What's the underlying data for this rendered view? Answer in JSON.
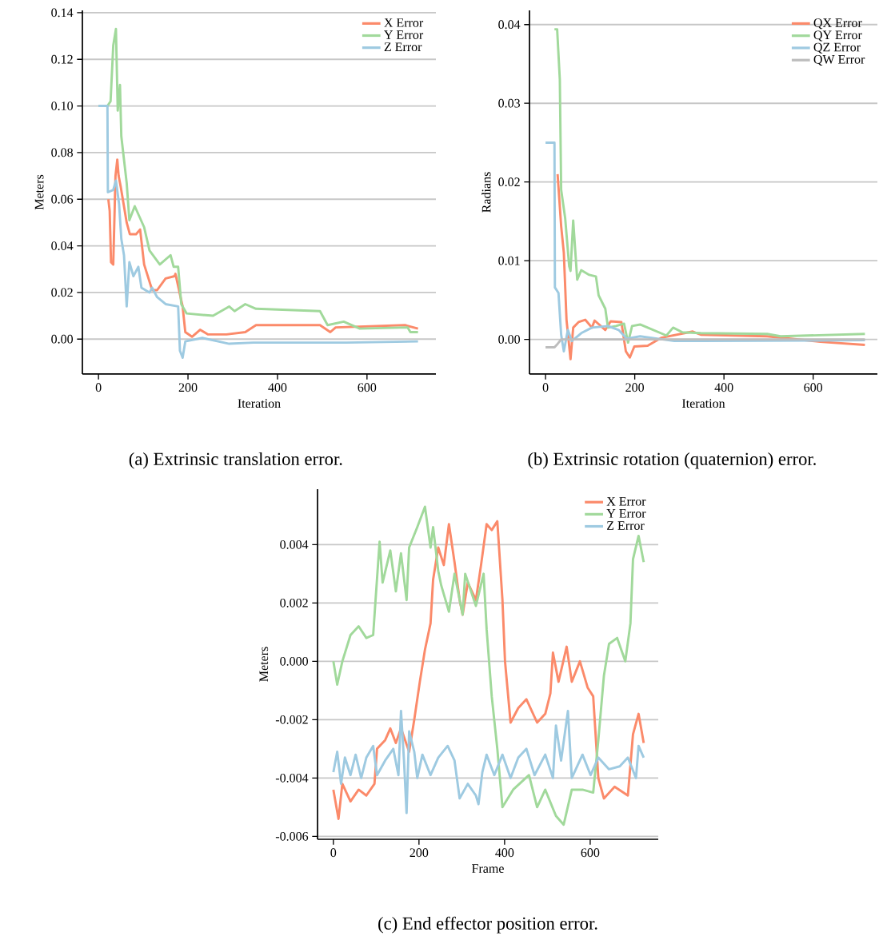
{
  "chart_data": [
    {
      "type": "line",
      "xlabel": "Iteration",
      "ylabel": "Meters",
      "annotations": [
        "(a) Extrinsic translation error."
      ],
      "xlim": [
        -36,
        754
      ],
      "ylim": [
        -0.015,
        0.141
      ],
      "xticks": [
        0,
        200,
        400,
        600
      ],
      "yticks": [
        {
          "value": 0,
          "label": "0.00"
        },
        {
          "value": 0.02,
          "label": "0.02"
        },
        {
          "value": 0.04,
          "label": "0.04"
        },
        {
          "value": 0.06,
          "label": "0.06"
        },
        {
          "value": 0.08,
          "label": "0.08"
        },
        {
          "value": 0.1,
          "label": "0.10"
        },
        {
          "value": 0.12,
          "label": "0.12"
        },
        {
          "value": 0.14,
          "label": "0.14"
        }
      ],
      "grid": "y",
      "legend": "top right",
      "series": [
        {
          "name": "X Error",
          "color": "#fb8a6a",
          "x": [
            22,
            25,
            28,
            33,
            38,
            42,
            45,
            50,
            63,
            70,
            84,
            93,
            102,
            120,
            131,
            150,
            170,
            172,
            188,
            194,
            209,
            227,
            245,
            286,
            328,
            352,
            495,
            518,
            530,
            685,
            714
          ],
          "values": [
            0.06,
            0.055,
            0.033,
            0.032,
            0.07,
            0.077,
            0.07,
            0.065,
            0.05,
            0.045,
            0.045,
            0.047,
            0.032,
            0.021,
            0.021,
            0.026,
            0.027,
            0.028,
            0.014,
            0.003,
            0.001,
            0.004,
            0.002,
            0.002,
            0.003,
            0.006,
            0.006,
            0.003,
            0.005,
            0.006,
            0.0045
          ]
        },
        {
          "name": "Y Error",
          "color": "#a1d99b",
          "x": [
            0,
            20,
            27,
            33,
            39,
            43,
            48,
            51,
            63,
            66,
            69,
            81,
            102,
            114,
            137,
            161,
            168,
            178,
            185,
            197,
            256,
            292,
            304,
            328,
            352,
            495,
            512,
            548,
            584,
            691,
            697,
            714
          ],
          "values": [
            0.1,
            0.1,
            0.102,
            0.126,
            0.133,
            0.098,
            0.109,
            0.087,
            0.067,
            0.059,
            0.051,
            0.057,
            0.048,
            0.038,
            0.032,
            0.036,
            0.031,
            0.031,
            0.015,
            0.011,
            0.01,
            0.014,
            0.012,
            0.015,
            0.013,
            0.012,
            0.006,
            0.0075,
            0.0045,
            0.005,
            0.003,
            0.003
          ]
        },
        {
          "name": "Z Error",
          "color": "#9ecae1",
          "x": [
            0,
            20,
            21,
            33,
            39,
            46,
            51,
            57,
            63,
            69,
            78,
            89,
            96,
            114,
            120,
            131,
            150,
            178,
            182,
            188,
            194,
            232,
            292,
            346,
            554,
            714
          ],
          "values": [
            0.1,
            0.1,
            0.063,
            0.064,
            0.068,
            0.058,
            0.043,
            0.036,
            0.014,
            0.033,
            0.027,
            0.031,
            0.022,
            0.02,
            0.022,
            0.018,
            0.015,
            0.014,
            -0.005,
            -0.008,
            -0.001,
            0.0005,
            -0.002,
            -0.0015,
            -0.0015,
            -0.001
          ]
        }
      ]
    },
    {
      "type": "line",
      "xlabel": "Iteration",
      "ylabel": "Radians",
      "annotations": [
        "(b) Extrinsic rotation (quaternion) error."
      ],
      "xlim": [
        -36,
        744
      ],
      "ylim": [
        -0.0044,
        0.0418
      ],
      "xticks": [
        0,
        200,
        400,
        600
      ],
      "yticks": [
        {
          "value": 0,
          "label": "0.00"
        },
        {
          "value": 0.01,
          "label": "0.01"
        },
        {
          "value": 0.02,
          "label": "0.02"
        },
        {
          "value": 0.03,
          "label": "0.03"
        },
        {
          "value": 0.04,
          "label": "0.04"
        }
      ],
      "grid": "y",
      "legend": "top right",
      "series": [
        {
          "name": "QX Error",
          "color": "#fb8a6a",
          "x": [
            27,
            35,
            41,
            47,
            56,
            62,
            74,
            89,
            104,
            110,
            134,
            146,
            170,
            180,
            189,
            199,
            229,
            259,
            330,
            348,
            497,
            616,
            716
          ],
          "values": [
            0.021,
            0.0144,
            0.011,
            0.0025,
            -0.0025,
            0.0015,
            0.0022,
            0.0025,
            0.0015,
            0.0024,
            0.0012,
            0.0023,
            0.0022,
            -0.0015,
            -0.0023,
            -0.0009,
            -0.0008,
            0.0002,
            0.001,
            0.0006,
            0.0004,
            -0.0003,
            -0.0007
          ]
        },
        {
          "name": "QY Error",
          "color": "#a1d99b",
          "x": [
            20,
            26,
            32,
            35,
            44,
            53,
            56,
            62,
            71,
            80,
            98,
            113,
            119,
            134,
            140,
            158,
            176,
            185,
            194,
            212,
            229,
            271,
            286,
            307,
            348,
            497,
            527,
            716
          ],
          "values": [
            0.0394,
            0.0394,
            0.033,
            0.019,
            0.0154,
            0.0093,
            0.0087,
            0.0151,
            0.0076,
            0.0088,
            0.0082,
            0.008,
            0.0056,
            0.0039,
            0.0015,
            0.0017,
            0.002,
            -0.0004,
            0.0017,
            0.0019,
            0.0015,
            0.0005,
            0.0015,
            0.0009,
            0.0008,
            0.0007,
            0.0004,
            0.0007
          ]
        },
        {
          "name": "QZ Error",
          "color": "#9ecae1",
          "x": [
            0,
            20,
            21,
            29,
            35,
            41,
            50,
            59,
            80,
            104,
            140,
            164,
            182,
            212,
            289,
            348,
            716
          ],
          "values": [
            0.025,
            0.025,
            0.0066,
            0.0059,
            0.0006,
            -0.0015,
            0.0012,
            -0.0002,
            0.0008,
            0.0015,
            0.0017,
            0.0012,
            0.0001,
            0.0004,
            -0.0002,
            -0.0002,
            -0.0001
          ]
        },
        {
          "name": "QW Error",
          "color": "#bdbdbd",
          "x": [
            0,
            20,
            25,
            35,
            716
          ],
          "values": [
            -0.001,
            -0.001,
            -0.0007,
            0,
            0
          ]
        }
      ]
    },
    {
      "type": "line",
      "xlabel": "Frame",
      "ylabel": "Meters",
      "annotations": [
        "(c) End effector position error."
      ],
      "xlim": [
        -37,
        759
      ],
      "ylim": [
        -0.0061,
        0.0059
      ],
      "xticks": [
        0,
        200,
        400,
        600
      ],
      "yticks": [
        {
          "value": -0.006,
          "label": "-0.006"
        },
        {
          "value": -0.004,
          "label": "-0.004"
        },
        {
          "value": -0.002,
          "label": "-0.002"
        },
        {
          "value": 0,
          "label": "0.000"
        },
        {
          "value": 0.002,
          "label": "0.002"
        },
        {
          "value": 0.004,
          "label": "0.004"
        }
      ],
      "grid": "y",
      "legend": "top right",
      "series": [
        {
          "name": "X Error",
          "color": "#fb8a6a",
          "x": [
            0,
            12,
            21,
            40,
            59,
            77,
            96,
            102,
            121,
            133,
            146,
            158,
            177,
            189,
            202,
            214,
            227,
            233,
            245,
            258,
            270,
            283,
            295,
            302,
            314,
            333,
            345,
            358,
            370,
            383,
            395,
            401,
            414,
            432,
            451,
            476,
            495,
            507,
            513,
            526,
            545,
            557,
            576,
            594,
            607,
            619,
            632,
            657,
            688,
            700,
            713,
            725
          ],
          "values": [
            -0.0044,
            -0.0054,
            -0.0042,
            -0.0048,
            -0.0044,
            -0.0046,
            -0.0042,
            -0.003,
            -0.0027,
            -0.0023,
            -0.0028,
            -0.0023,
            -0.0031,
            -0.002,
            -0.0007,
            0.0004,
            0.0013,
            0.0028,
            0.0039,
            0.0033,
            0.0047,
            0.0034,
            0.0021,
            0.0016,
            0.0027,
            0.0021,
            0.0033,
            0.0047,
            0.0045,
            0.0048,
            0.0021,
            0.0,
            -0.0021,
            -0.0016,
            -0.0013,
            -0.0021,
            -0.0018,
            -0.0011,
            0.0003,
            -0.0007,
            0.0005,
            -0.0007,
            0.0,
            -0.0009,
            -0.0012,
            -0.004,
            -0.0047,
            -0.0043,
            -0.0046,
            -0.0025,
            -0.0018,
            -0.0028
          ]
        },
        {
          "name": "Y Error",
          "color": "#a1d99b",
          "x": [
            0,
            9,
            21,
            40,
            59,
            77,
            93,
            99,
            108,
            115,
            133,
            146,
            158,
            171,
            177,
            196,
            214,
            227,
            233,
            245,
            252,
            270,
            283,
            302,
            308,
            333,
            351,
            358,
            370,
            383,
            395,
            420,
            457,
            476,
            495,
            520,
            538,
            557,
            582,
            607,
            619,
            632,
            644,
            663,
            682,
            694,
            700,
            713,
            725
          ],
          "values": [
            0,
            -0.0008,
            0,
            0.0009,
            0.0012,
            0.0008,
            0.0009,
            0.0022,
            0.0041,
            0.0027,
            0.0038,
            0.0024,
            0.0037,
            0.0021,
            0.0039,
            0.0046,
            0.0053,
            0.0039,
            0.0046,
            0.0031,
            0.0026,
            0.0017,
            0.003,
            0.0016,
            0.003,
            0.0019,
            0.003,
            0.0011,
            -0.0012,
            -0.003,
            -0.005,
            -0.0044,
            -0.0039,
            -0.005,
            -0.0044,
            -0.0053,
            -0.0056,
            -0.0044,
            -0.0044,
            -0.0045,
            -0.0027,
            -0.0005,
            0.0006,
            0.0008,
            0,
            0.0013,
            0.0035,
            0.0043,
            0.0034
          ]
        },
        {
          "name": "Z Error",
          "color": "#9ecae1",
          "x": [
            0,
            9,
            18,
            27,
            40,
            52,
            65,
            77,
            93,
            102,
            121,
            140,
            152,
            158,
            165,
            171,
            177,
            189,
            196,
            208,
            227,
            245,
            267,
            283,
            295,
            314,
            333,
            339,
            348,
            358,
            376,
            395,
            414,
            432,
            451,
            470,
            495,
            513,
            520,
            532,
            548,
            557,
            582,
            601,
            619,
            644,
            669,
            688,
            707,
            713,
            725
          ],
          "values": [
            -0.0038,
            -0.0031,
            -0.0042,
            -0.0033,
            -0.0039,
            -0.0032,
            -0.004,
            -0.0033,
            -0.0029,
            -0.0039,
            -0.0034,
            -0.003,
            -0.0039,
            -0.0017,
            -0.0034,
            -0.0052,
            -0.0024,
            -0.0031,
            -0.004,
            -0.0032,
            -0.0039,
            -0.0033,
            -0.0029,
            -0.0034,
            -0.0047,
            -0.0042,
            -0.0046,
            -0.0049,
            -0.0038,
            -0.0032,
            -0.0039,
            -0.0032,
            -0.004,
            -0.0033,
            -0.003,
            -0.0039,
            -0.0032,
            -0.004,
            -0.0022,
            -0.0034,
            -0.0017,
            -0.004,
            -0.0032,
            -0.0039,
            -0.0033,
            -0.0037,
            -0.0036,
            -0.0033,
            -0.004,
            -0.0029,
            -0.0033
          ]
        }
      ]
    }
  ]
}
